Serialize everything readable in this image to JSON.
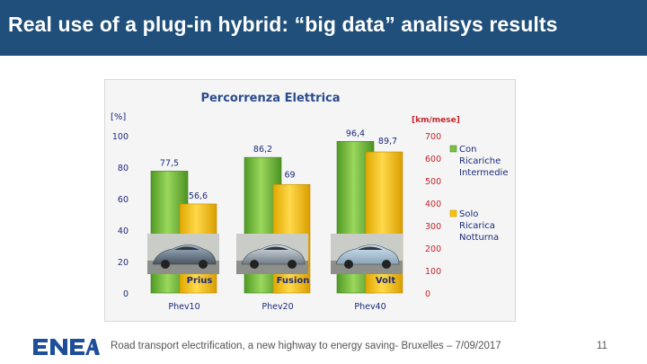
{
  "slide": {
    "title": "Real use of a plug-in hybrid: “big data” analisys results",
    "footer": "Road transport electrification, a new highway to energy saving- Bruxelles – 7/09/2017",
    "page_number": "11",
    "logo_text": "ENEA",
    "title_bar_color": "#1f4f7a"
  },
  "chart_data": {
    "type": "bar",
    "title": "Percorrenza Elettrica",
    "categories": [
      "Phev10",
      "Phev20",
      "Phev40"
    ],
    "car_labels": [
      "Prius",
      "Fusion",
      "Volt"
    ],
    "series": [
      {
        "name": "Con Ricariche Intermedie",
        "axis": "left",
        "color": "#7ac143",
        "values": [
          77.5,
          86.2,
          96.4
        ],
        "labels": [
          "77,5",
          "86,2",
          "96,4"
        ]
      },
      {
        "name": "Solo Ricarica Notturna",
        "axis": "left",
        "color": "#f9c400",
        "values": [
          56.6,
          69,
          89.7
        ],
        "labels": [
          "56,6",
          "69",
          "89,7"
        ]
      }
    ],
    "y_left": {
      "label": "[%]",
      "min": 0,
      "max": 100,
      "ticks": [
        "0",
        "20",
        "40",
        "60",
        "80",
        "100"
      ]
    },
    "y_right": {
      "label": "[km/mese]",
      "min": 0,
      "max": 700,
      "ticks": [
        "0",
        "100",
        "200",
        "300",
        "400",
        "500",
        "600",
        "700"
      ]
    },
    "legend": {
      "position": "right",
      "entries": [
        {
          "lines": [
            "Con",
            "Ricariche",
            "Intermedie"
          ],
          "color": "#7ac143"
        },
        {
          "lines": [
            "Solo",
            "Ricarica",
            "Notturna"
          ],
          "color": "#f9c400"
        }
      ]
    }
  }
}
